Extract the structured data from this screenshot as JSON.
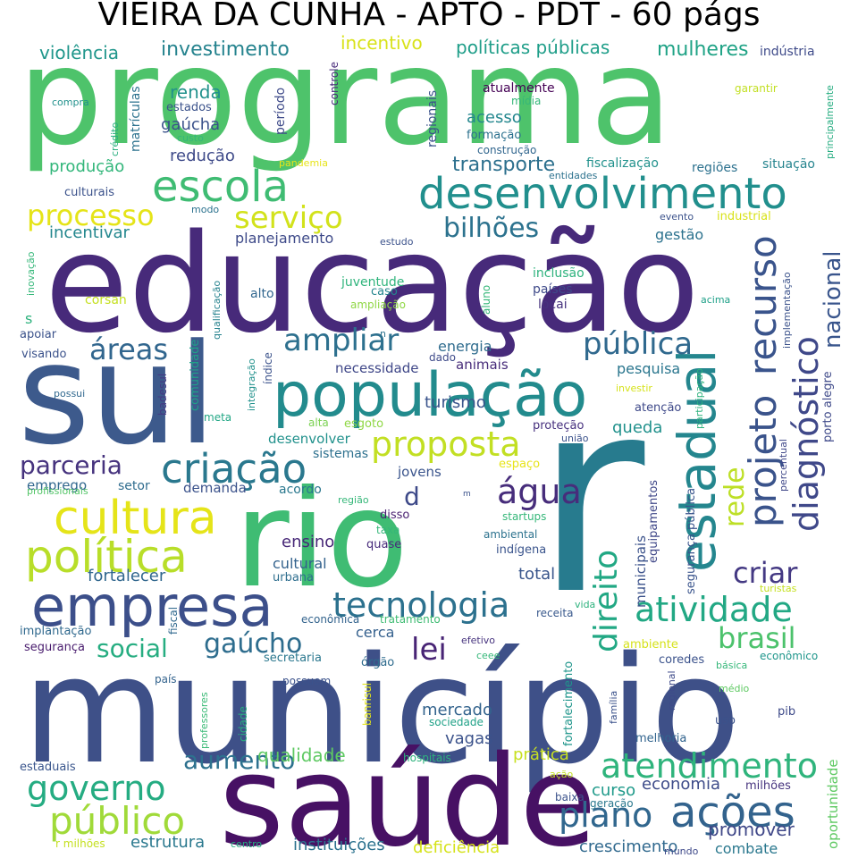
{
  "title": "VIEIRA DA CUNHA - APTO - PDT - 60 págs",
  "words": [
    {
      "text": "programa",
      "color": "#4ec36b"
    },
    {
      "text": "educação",
      "color": "#472a7a"
    },
    {
      "text": "sul",
      "color": "#3d5a8c"
    },
    {
      "text": "r",
      "color": "#277b8e"
    },
    {
      "text": "município",
      "color": "#3e5088"
    },
    {
      "text": "rio",
      "color": "#3fbc73"
    },
    {
      "text": "saúde",
      "color": "#471164"
    },
    {
      "text": "população",
      "color": "#228b8d"
    },
    {
      "text": "desenvolvimento",
      "color": "#218f8d"
    },
    {
      "text": "empresa",
      "color": "#3c4f8a"
    },
    {
      "text": "estadual",
      "color": "#24868e"
    },
    {
      "text": "cultura",
      "color": "#e5e419"
    },
    {
      "text": "política",
      "color": "#b8de29"
    },
    {
      "text": "escola",
      "color": "#3fbc73"
    },
    {
      "text": "projeto",
      "color": "#3a538b"
    },
    {
      "text": "recurso",
      "color": "#3a548c"
    },
    {
      "text": "diagnóstico",
      "color": "#3f4889"
    },
    {
      "text": "criação",
      "color": "#2a788e"
    },
    {
      "text": "proposta",
      "color": "#c2df23"
    },
    {
      "text": "tecnologia",
      "color": "#2c718e"
    },
    {
      "text": "atividade",
      "color": "#22a884"
    },
    {
      "text": "ações",
      "color": "#33638d"
    },
    {
      "text": "público",
      "color": "#a0da39"
    },
    {
      "text": "governo",
      "color": "#25ac82"
    },
    {
      "text": "atendimento",
      "color": "#2fb47c"
    },
    {
      "text": "direito",
      "color": "#22a884"
    },
    {
      "text": "plano",
      "color": "#31678e"
    },
    {
      "text": "água",
      "color": "#472d7b"
    },
    {
      "text": "serviço",
      "color": "#d2e21b"
    },
    {
      "text": "processo",
      "color": "#e5e419"
    },
    {
      "text": "ampliar",
      "color": "#2d708e"
    },
    {
      "text": "pública",
      "color": "#30698e"
    },
    {
      "text": "áreas",
      "color": "#31668e"
    },
    {
      "text": "bilhões",
      "color": "#2c728e"
    },
    {
      "text": "gaúcho",
      "color": "#2e6d8e"
    },
    {
      "text": "lei",
      "color": "#482475"
    },
    {
      "text": "brasil",
      "color": "#4cc26c"
    },
    {
      "text": "social",
      "color": "#26ad81"
    },
    {
      "text": "parceria",
      "color": "#46337e"
    },
    {
      "text": "aumento",
      "color": "#2d718e"
    },
    {
      "text": "rede",
      "color": "#bddf26"
    },
    {
      "text": "nacional",
      "color": "#39558c"
    },
    {
      "text": "criar",
      "color": "#443983"
    },
    {
      "text": "transporte",
      "color": "#2d708e"
    },
    {
      "text": "investimento",
      "color": "#25838e"
    },
    {
      "text": "mulheres",
      "color": "#20a386"
    },
    {
      "text": "políticas públicas",
      "color": "#1f9e89"
    },
    {
      "text": "incentivo",
      "color": "#d8e219"
    },
    {
      "text": "violência",
      "color": "#1f968b"
    },
    {
      "text": "renda",
      "color": "#21918c"
    },
    {
      "text": "gaúcha",
      "color": "#3b528b"
    },
    {
      "text": "redução",
      "color": "#3e4a89"
    },
    {
      "text": "produção",
      "color": "#32b67a"
    },
    {
      "text": "acesso",
      "color": "#24878e"
    },
    {
      "text": "incentivar",
      "color": "#24878e"
    },
    {
      "text": "planejamento",
      "color": "#3e4a89"
    },
    {
      "text": "gestão",
      "color": "#2c728e"
    },
    {
      "text": "energia",
      "color": "#2f6c8e"
    },
    {
      "text": "pesquisa",
      "color": "#2a768e"
    },
    {
      "text": "turismo",
      "color": "#3a548c"
    },
    {
      "text": "queda",
      "color": "#21918c"
    },
    {
      "text": "ensino",
      "color": "#482878"
    },
    {
      "text": "cultural",
      "color": "#33628d"
    },
    {
      "text": "fortalecer",
      "color": "#31678e"
    },
    {
      "text": "total",
      "color": "#39568c"
    },
    {
      "text": "mercado",
      "color": "#33638d"
    },
    {
      "text": "vagas",
      "color": "#3b528b"
    },
    {
      "text": "qualidade",
      "color": "#5ec962"
    },
    {
      "text": "prática",
      "color": "#c8e020"
    },
    {
      "text": "economia",
      "color": "#3e4c8a"
    },
    {
      "text": "curso",
      "color": "#1f9a8a"
    },
    {
      "text": "promover",
      "color": "#3f4788"
    },
    {
      "text": "crescimento",
      "color": "#30698e"
    },
    {
      "text": "instituições",
      "color": "#2c728e"
    },
    {
      "text": "estrutura",
      "color": "#2a788e"
    },
    {
      "text": "deficiência",
      "color": "#d5e21a"
    },
    {
      "text": "combate",
      "color": "#2a788e"
    },
    {
      "text": "oportunidade",
      "color": "#5ec962"
    },
    {
      "text": "melhoria",
      "color": "#32648e"
    },
    {
      "text": "demanda",
      "color": "#3b528b"
    },
    {
      "text": "emprego",
      "color": "#31678e"
    },
    {
      "text": "jovens",
      "color": "#3a548c"
    },
    {
      "text": "necessidade",
      "color": "#3f4788"
    },
    {
      "text": "animais",
      "color": "#472c7a"
    },
    {
      "text": "desenvolver",
      "color": "#21918c"
    },
    {
      "text": "sistemas",
      "color": "#2d708e"
    },
    {
      "text": "acordo",
      "color": "#2a788e"
    },
    {
      "text": "setor",
      "color": "#2f6c8e"
    },
    {
      "text": "municipais",
      "color": "#3b528b"
    },
    {
      "text": "equipamentos",
      "color": "#3f4788"
    },
    {
      "text": "segurança pública",
      "color": "#3a548c"
    },
    {
      "text": "inclusão",
      "color": "#2db27d"
    },
    {
      "text": "países",
      "color": "#3e4989"
    },
    {
      "text": "locai",
      "color": "#46327e"
    },
    {
      "text": "juventude",
      "color": "#2fb47c"
    },
    {
      "text": "caso",
      "color": "#24868e"
    },
    {
      "text": "ampliação",
      "color": "#8fd744"
    },
    {
      "text": "aluno",
      "color": "#35b779"
    },
    {
      "text": "alto",
      "color": "#31668e"
    },
    {
      "text": "qualificação",
      "color": "#26828e"
    },
    {
      "text": "corsan",
      "color": "#c5e021"
    },
    {
      "text": "inovação",
      "color": "#35b779"
    },
    {
      "text": "apoiar",
      "color": "#3b528b"
    },
    {
      "text": "visando",
      "color": "#3b528b"
    },
    {
      "text": "possui",
      "color": "#31688e"
    },
    {
      "text": "s",
      "color": "#2db27d"
    },
    {
      "text": "n",
      "color": "#2c728e"
    },
    {
      "text": "d",
      "color": "#3e4a89"
    },
    {
      "text": "dado",
      "color": "#3e4a89"
    },
    {
      "text": "índice",
      "color": "#3b528b"
    },
    {
      "text": "integração",
      "color": "#21918c"
    },
    {
      "text": "comunidade",
      "color": "#1fa088"
    },
    {
      "text": "badesul",
      "color": "#443983"
    },
    {
      "text": "meta",
      "color": "#22a785"
    },
    {
      "text": "alta",
      "color": "#7ad151"
    },
    {
      "text": "esgoto",
      "color": "#8fd744"
    },
    {
      "text": "proteção",
      "color": "#46307e"
    },
    {
      "text": "atenção",
      "color": "#3e4989"
    },
    {
      "text": "união",
      "color": "#3b528b"
    },
    {
      "text": "espaço",
      "color": "#e7e419"
    },
    {
      "text": "investir",
      "color": "#d5e21a"
    },
    {
      "text": "participação",
      "color": "#2db27d"
    },
    {
      "text": "percentual",
      "color": "#3f4788"
    },
    {
      "text": "porto alegre",
      "color": "#3e4989"
    },
    {
      "text": "implementação",
      "color": "#3b528b"
    },
    {
      "text": "acima",
      "color": "#1fa088"
    },
    {
      "text": "região",
      "color": "#35b779"
    },
    {
      "text": "m",
      "color": "#3b528b"
    },
    {
      "text": "disso",
      "color": "#481f70"
    },
    {
      "text": "taxa",
      "color": "#35b779"
    },
    {
      "text": "quase",
      "color": "#472a7a"
    },
    {
      "text": "ambiental",
      "color": "#2c728e"
    },
    {
      "text": "indígena",
      "color": "#3a548c"
    },
    {
      "text": "startups",
      "color": "#35b779"
    },
    {
      "text": "urbana",
      "color": "#2e6e8e"
    },
    {
      "text": "econômica",
      "color": "#33638d"
    },
    {
      "text": "tratamento",
      "color": "#3fbc73"
    },
    {
      "text": "receita",
      "color": "#38588c"
    },
    {
      "text": "vida",
      "color": "#2db27d"
    },
    {
      "text": "fiscal",
      "color": "#30698e"
    },
    {
      "text": "implantação",
      "color": "#30698e"
    },
    {
      "text": "segurança",
      "color": "#481b6d"
    },
    {
      "text": "profissionais",
      "color": "#54c568"
    },
    {
      "text": "país",
      "color": "#33638d"
    },
    {
      "text": "secretaria",
      "color": "#2a778e"
    },
    {
      "text": "efetivo",
      "color": "#46337e"
    },
    {
      "text": "órgão",
      "color": "#2f6c8e"
    },
    {
      "text": "ceee",
      "color": "#35b779"
    },
    {
      "text": "cerca",
      "color": "#34608d"
    },
    {
      "text": "banrisul",
      "color": "#e2e418"
    },
    {
      "text": "possuem",
      "color": "#3b528b"
    },
    {
      "text": "cidade",
      "color": "#29af7f"
    },
    {
      "text": "professores",
      "color": "#3aba76"
    },
    {
      "text": "estaduais",
      "color": "#39558c"
    },
    {
      "text": "sociedade",
      "color": "#1fa187"
    },
    {
      "text": "hospitais",
      "color": "#2db27d"
    },
    {
      "text": "ação",
      "color": "#c2df23"
    },
    {
      "text": "fortalecimento",
      "color": "#1f958b"
    },
    {
      "text": "família",
      "color": "#3b528b"
    },
    {
      "text": "baixa",
      "color": "#3b528b"
    },
    {
      "text": "geração",
      "color": "#2a788e"
    },
    {
      "text": "milhões",
      "color": "#46337e"
    },
    {
      "text": "r milhões",
      "color": "#c5e021"
    },
    {
      "text": "centro",
      "color": "#26ad81"
    },
    {
      "text": "mundo",
      "color": "#3e4989"
    },
    {
      "text": "ambiente",
      "color": "#d5e21a"
    },
    {
      "text": "coredes",
      "color": "#3b528b"
    },
    {
      "text": "econômico",
      "color": "#1f968b"
    },
    {
      "text": "básica",
      "color": "#35b779"
    },
    {
      "text": "médio",
      "color": "#5ec962"
    },
    {
      "text": "pib",
      "color": "#3e4a89"
    },
    {
      "text": "uso",
      "color": "#3b528b"
    },
    {
      "text": "regional",
      "color": "#3e4a89"
    },
    {
      "text": "turistas",
      "color": "#c5e021"
    },
    {
      "text": "situação",
      "color": "#25848e"
    },
    {
      "text": "regiões",
      "color": "#2c718e"
    },
    {
      "text": "fiscalização",
      "color": "#21918c"
    },
    {
      "text": "entidades",
      "color": "#2c728e"
    },
    {
      "text": "construção",
      "color": "#31668e"
    },
    {
      "text": "formação",
      "color": "#2c718e"
    },
    {
      "text": "mídia",
      "color": "#35b779"
    },
    {
      "text": "atualmente",
      "color": "#440154"
    },
    {
      "text": "regionais",
      "color": "#3b528b"
    },
    {
      "text": "controle",
      "color": "#472a7a"
    },
    {
      "text": "período",
      "color": "#3e4a89"
    },
    {
      "text": "estados",
      "color": "#3b528b"
    },
    {
      "text": "custo",
      "color": "#35b779"
    },
    {
      "text": "matrículas",
      "color": "#2c728e"
    },
    {
      "text": "crédito",
      "color": "#29af7f"
    },
    {
      "text": "compra",
      "color": "#21918c"
    },
    {
      "text": "culturais",
      "color": "#3b528b"
    },
    {
      "text": "pandemia",
      "color": "#e7e419"
    },
    {
      "text": "modo",
      "color": "#2c728e"
    },
    {
      "text": "estudo",
      "color": "#3b528b"
    },
    {
      "text": "evento",
      "color": "#3b528b"
    },
    {
      "text": "industrial",
      "color": "#d8e219"
    },
    {
      "text": "indústria",
      "color": "#3e4a89"
    },
    {
      "text": "garantir",
      "color": "#c2df23"
    },
    {
      "text": "principalmente",
      "color": "#26ad81"
    }
  ]
}
